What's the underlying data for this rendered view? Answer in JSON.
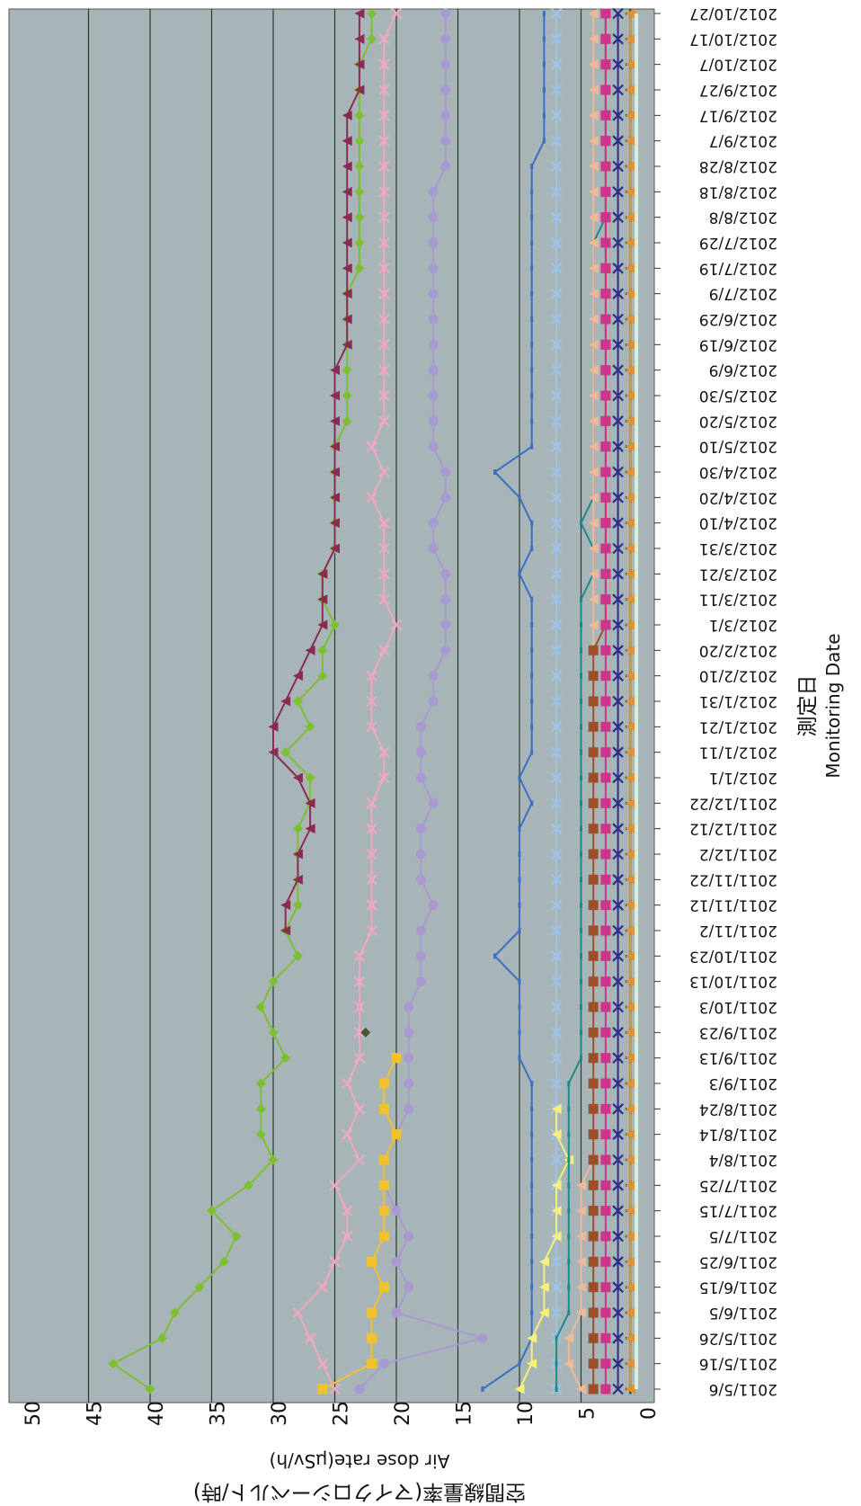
{
  "chart_data": {
    "type": "line",
    "orientation": "rotated-90-clockwise",
    "xlabel": "測定日",
    "xlabel_en": "Monitoring Date",
    "ylabel": "空間線量率(マイクロシーベルト/時)",
    "ylabel_en": "Air dose rate(μSv/h)",
    "ylim": [
      0,
      50
    ],
    "yticks": [
      0,
      5,
      10,
      15,
      20,
      25,
      30,
      35,
      40,
      45,
      50
    ],
    "grid": true,
    "plot_background": "#a7b4b8",
    "categories": [
      "2011/5/6",
      "2011/5/16",
      "2011/5/26",
      "2011/6/5",
      "2011/6/15",
      "2011/6/25",
      "2011/7/5",
      "2011/7/15",
      "2011/7/25",
      "2011/8/4",
      "2011/8/14",
      "2011/8/24",
      "2011/9/3",
      "2011/9/13",
      "2011/9/23",
      "2011/10/3",
      "2011/10/13",
      "2011/10/23",
      "2011/11/2",
      "2011/11/12",
      "2011/11/22",
      "2011/12/2",
      "2011/12/12",
      "2011/12/22",
      "2012/1/1",
      "2012/1/11",
      "2012/1/21",
      "2012/1/31",
      "2012/2/10",
      "2012/2/20",
      "2012/3/1",
      "2012/3/11",
      "2012/3/21",
      "2012/3/31",
      "2012/4/10",
      "2012/4/20",
      "2012/4/30",
      "2012/5/10",
      "2012/5/20",
      "2012/5/30",
      "2012/6/9",
      "2012/6/19",
      "2012/6/29",
      "2012/7/9",
      "2012/7/19",
      "2012/7/29",
      "2012/8/8",
      "2012/8/18",
      "2012/8/28",
      "2012/9/7",
      "2012/9/17",
      "2012/9/27",
      "2012/10/7",
      "2012/10/17",
      "2012/10/27"
    ],
    "series": [
      {
        "color": "#7cc030",
        "marker": "diamond",
        "values": [
          40,
          43,
          39,
          38,
          36,
          34,
          33,
          35,
          32,
          30,
          31,
          31,
          31,
          29,
          30,
          31,
          30,
          28,
          29,
          28,
          28,
          28,
          28,
          27,
          27,
          29,
          27,
          28,
          26,
          26,
          25,
          26,
          26,
          25,
          25,
          25,
          25,
          25,
          24,
          24,
          24,
          24,
          24,
          24,
          23,
          23,
          23,
          23,
          23,
          23,
          23,
          23,
          23,
          22,
          22
        ]
      },
      {
        "color": "#8b2b52",
        "marker": "triangle",
        "values": [
          null,
          null,
          null,
          null,
          null,
          null,
          null,
          null,
          null,
          null,
          null,
          null,
          null,
          null,
          null,
          null,
          null,
          null,
          29,
          29,
          28,
          28,
          27,
          27,
          28,
          30,
          30,
          29,
          28,
          27,
          26,
          26,
          26,
          25,
          25,
          25,
          25,
          25,
          25,
          25,
          25,
          24,
          24,
          24,
          24,
          24,
          24,
          24,
          24,
          24,
          24,
          23,
          23,
          23,
          23
        ]
      },
      {
        "color": "#f0a8c0",
        "marker": "x",
        "values": [
          25,
          26,
          27,
          28,
          26,
          25,
          24,
          24,
          25,
          23,
          24,
          23,
          24,
          23,
          23,
          23,
          23,
          23,
          22,
          22,
          22,
          22,
          22,
          22,
          21,
          21,
          22,
          22,
          22,
          21,
          20,
          21,
          21,
          21,
          21,
          22,
          21,
          22,
          21,
          21,
          21,
          21,
          21,
          21,
          21,
          21,
          21,
          21,
          21,
          21,
          21,
          21,
          21,
          21,
          20
        ]
      },
      {
        "color": "#a89ad0",
        "marker": "circle",
        "values": [
          23,
          21,
          13,
          20,
          19,
          20,
          19,
          20,
          21,
          21,
          20,
          19,
          19,
          19,
          19,
          19,
          18,
          18,
          18,
          17,
          18,
          18,
          18,
          17,
          18,
          18,
          18,
          17,
          17,
          16,
          16,
          16,
          16,
          17,
          17,
          16,
          16,
          17,
          17,
          17,
          17,
          17,
          17,
          17,
          17,
          17,
          17,
          17,
          16,
          16,
          16,
          16,
          16,
          16,
          16
        ]
      },
      {
        "color": "#f2c12e",
        "marker": "square",
        "values": [
          26,
          22,
          22,
          22,
          21,
          22,
          21,
          21,
          21,
          21,
          20,
          21,
          21,
          20,
          null,
          null,
          null,
          null,
          null,
          null,
          null,
          null,
          null,
          null,
          null,
          null,
          null,
          null,
          null,
          null,
          null,
          null,
          null,
          null,
          null,
          null,
          null,
          null,
          null,
          null,
          null,
          null,
          null,
          null,
          null,
          null,
          null,
          null,
          null,
          null,
          null,
          null,
          null,
          null,
          null
        ]
      },
      {
        "color": "#3a6fc4",
        "marker": "dash",
        "values": [
          13,
          10,
          9,
          9,
          9,
          9,
          9,
          9,
          9,
          9,
          9,
          9,
          9,
          10,
          10,
          10,
          10,
          12,
          10,
          10,
          10,
          10,
          10,
          9,
          10,
          9,
          9,
          9,
          9,
          9,
          9,
          9,
          10,
          9,
          9,
          10,
          12,
          9,
          9,
          9,
          9,
          9,
          9,
          9,
          9,
          9,
          9,
          9,
          9,
          8,
          8,
          8,
          8,
          8,
          8
        ]
      },
      {
        "color": "#9cc4e8",
        "marker": "x",
        "values": [
          7,
          7,
          7,
          7,
          7,
          7,
          7,
          7,
          7,
          7,
          7,
          7,
          7,
          7,
          7,
          7,
          7,
          7,
          7,
          7,
          7,
          7,
          7,
          7,
          7,
          7,
          7,
          7,
          7,
          7,
          7,
          7,
          7,
          7,
          7,
          7,
          7,
          7,
          7,
          7,
          7,
          7,
          7,
          7,
          7,
          7,
          7,
          7,
          7,
          7,
          7,
          7,
          7,
          7,
          7
        ]
      },
      {
        "color": "#f5f07a",
        "marker": "triangle",
        "values": [
          10,
          9,
          9,
          8,
          8,
          8,
          7,
          7,
          7,
          6,
          7,
          7,
          null,
          null,
          null,
          null,
          null,
          null,
          null,
          null,
          null,
          null,
          null,
          null,
          null,
          null,
          null,
          null,
          null,
          null,
          null,
          null,
          null,
          null,
          null,
          null,
          null,
          null,
          null,
          null,
          null,
          null,
          null,
          null,
          null,
          null,
          null,
          null,
          null,
          null,
          null,
          null,
          null,
          null,
          null
        ]
      },
      {
        "color": "#1a8a8a",
        "marker": "dash",
        "values": [
          7,
          7,
          7,
          6,
          6,
          6,
          6,
          6,
          6,
          6,
          6,
          6,
          6,
          5,
          5,
          5,
          5,
          5,
          5,
          5,
          5,
          5,
          5,
          5,
          5,
          5,
          5,
          5,
          5,
          5,
          5,
          5,
          4,
          4,
          5,
          4,
          4,
          4,
          4,
          4,
          4,
          4,
          4,
          4,
          4,
          4,
          3,
          3,
          3,
          3,
          3,
          3,
          3,
          3,
          3
        ]
      },
      {
        "color": "#f0b896",
        "marker": "triangle",
        "values": [
          5,
          6,
          6,
          5,
          5,
          5,
          5,
          5,
          5,
          4,
          4,
          4,
          4,
          4,
          4,
          4,
          4,
          4,
          4,
          4,
          4,
          4,
          4,
          4,
          4,
          4,
          4,
          4,
          4,
          4,
          4,
          4,
          4,
          4,
          4,
          4,
          4,
          4,
          4,
          4,
          4,
          4,
          4,
          4,
          4,
          4,
          4,
          4,
          4,
          4,
          4,
          4,
          4,
          4,
          4
        ]
      },
      {
        "color": "#9b4f2a",
        "marker": "square",
        "values": [
          4,
          4,
          4,
          4,
          4,
          4,
          4,
          4,
          4,
          4,
          4,
          4,
          4,
          4,
          4,
          4,
          4,
          4,
          4,
          4,
          4,
          4,
          4,
          4,
          4,
          4,
          4,
          4,
          4,
          4,
          3,
          3,
          3,
          3,
          3,
          3,
          3,
          3,
          3,
          3,
          3,
          3,
          3,
          3,
          3,
          3,
          3,
          3,
          3,
          3,
          3,
          3,
          3,
          3,
          3
        ]
      },
      {
        "color": "#d0348a",
        "marker": "square",
        "values": [
          3,
          3,
          3,
          3,
          3,
          3,
          3,
          3,
          3,
          3,
          3,
          3,
          3,
          3,
          3,
          3,
          3,
          3,
          3,
          3,
          3,
          3,
          3,
          3,
          3,
          3,
          3,
          3,
          3,
          3,
          3,
          3,
          3,
          3,
          3,
          3,
          3,
          3,
          3,
          3,
          3,
          3,
          3,
          3,
          3,
          3,
          3,
          3,
          3,
          3,
          3,
          3,
          3,
          3,
          3
        ]
      },
      {
        "color": "#2b2f8a",
        "marker": "x",
        "values": [
          2,
          2,
          2,
          2,
          2,
          2,
          2,
          2,
          2,
          2,
          2,
          2,
          2,
          2,
          2,
          2,
          2,
          2,
          2,
          2,
          2,
          2,
          2,
          2,
          2,
          2,
          2,
          2,
          2,
          2,
          2,
          2,
          2,
          2,
          2,
          2,
          2,
          2,
          2,
          2,
          2,
          2,
          2,
          2,
          2,
          2,
          2,
          2,
          2,
          2,
          2,
          2,
          2,
          2,
          2
        ]
      },
      {
        "color": "#1a5e2e",
        "marker": "plus",
        "values": [
          1,
          1,
          1,
          1,
          1,
          1,
          1,
          1,
          1,
          1,
          1,
          1,
          1,
          1,
          1,
          1,
          1,
          1,
          1,
          1,
          1,
          1,
          1,
          1,
          1,
          1,
          1,
          1,
          1,
          1,
          1,
          1,
          1,
          1,
          1,
          1,
          1,
          1,
          1,
          1,
          1,
          1,
          1,
          1,
          1,
          1,
          1,
          1,
          1,
          1,
          1,
          1,
          1,
          1,
          1
        ]
      },
      {
        "color": "#e8902c",
        "marker": "triangle",
        "values": [
          1,
          1,
          1,
          1,
          1,
          1,
          1,
          1,
          1,
          1,
          1,
          1,
          1,
          1,
          1,
          1,
          1,
          1,
          1,
          1,
          1,
          1,
          1,
          1,
          1,
          1,
          1,
          1,
          1,
          1,
          1,
          1,
          1,
          1,
          1,
          1,
          1,
          1,
          1,
          1,
          1,
          1,
          1,
          1,
          1,
          1,
          1,
          1,
          1,
          1,
          1,
          1,
          1,
          1,
          1
        ]
      },
      {
        "color": "#d8eedc",
        "marker": "none",
        "values": [
          0.5,
          0.5,
          0.5,
          0.5,
          0.5,
          0.5,
          0.5,
          0.5,
          0.5,
          0.5,
          0.5,
          0.5,
          0.5,
          0.5,
          0.5,
          0.5,
          0.5,
          0.5,
          0.5,
          0.5,
          0.5,
          0.5,
          0.5,
          0.5,
          0.5,
          0.5,
          0.5,
          0.5,
          0.5,
          0.5,
          0.5,
          0.5,
          0.5,
          0.5,
          0.5,
          0.5,
          0.5,
          0.5,
          0.5,
          0.5,
          0.5,
          0.5,
          0.5,
          0.5,
          0.5,
          0.5,
          0.5,
          0.5,
          0.5,
          0.5,
          0.5,
          0.5,
          0.5,
          0.5,
          0.5
        ]
      },
      {
        "color": "#3f5a33",
        "marker": "diamond",
        "values": [
          null,
          null,
          null,
          null,
          null,
          null,
          null,
          null,
          null,
          null,
          null,
          null,
          null,
          null,
          22.5,
          null,
          null,
          null,
          null,
          null,
          null,
          null,
          null,
          null,
          null,
          null,
          null,
          null,
          null,
          null,
          null,
          null,
          null,
          null,
          null,
          null,
          null,
          null,
          null,
          null,
          null,
          null,
          null,
          null,
          null,
          null,
          null,
          null,
          null,
          null,
          null,
          null,
          null,
          null,
          null
        ]
      }
    ]
  }
}
